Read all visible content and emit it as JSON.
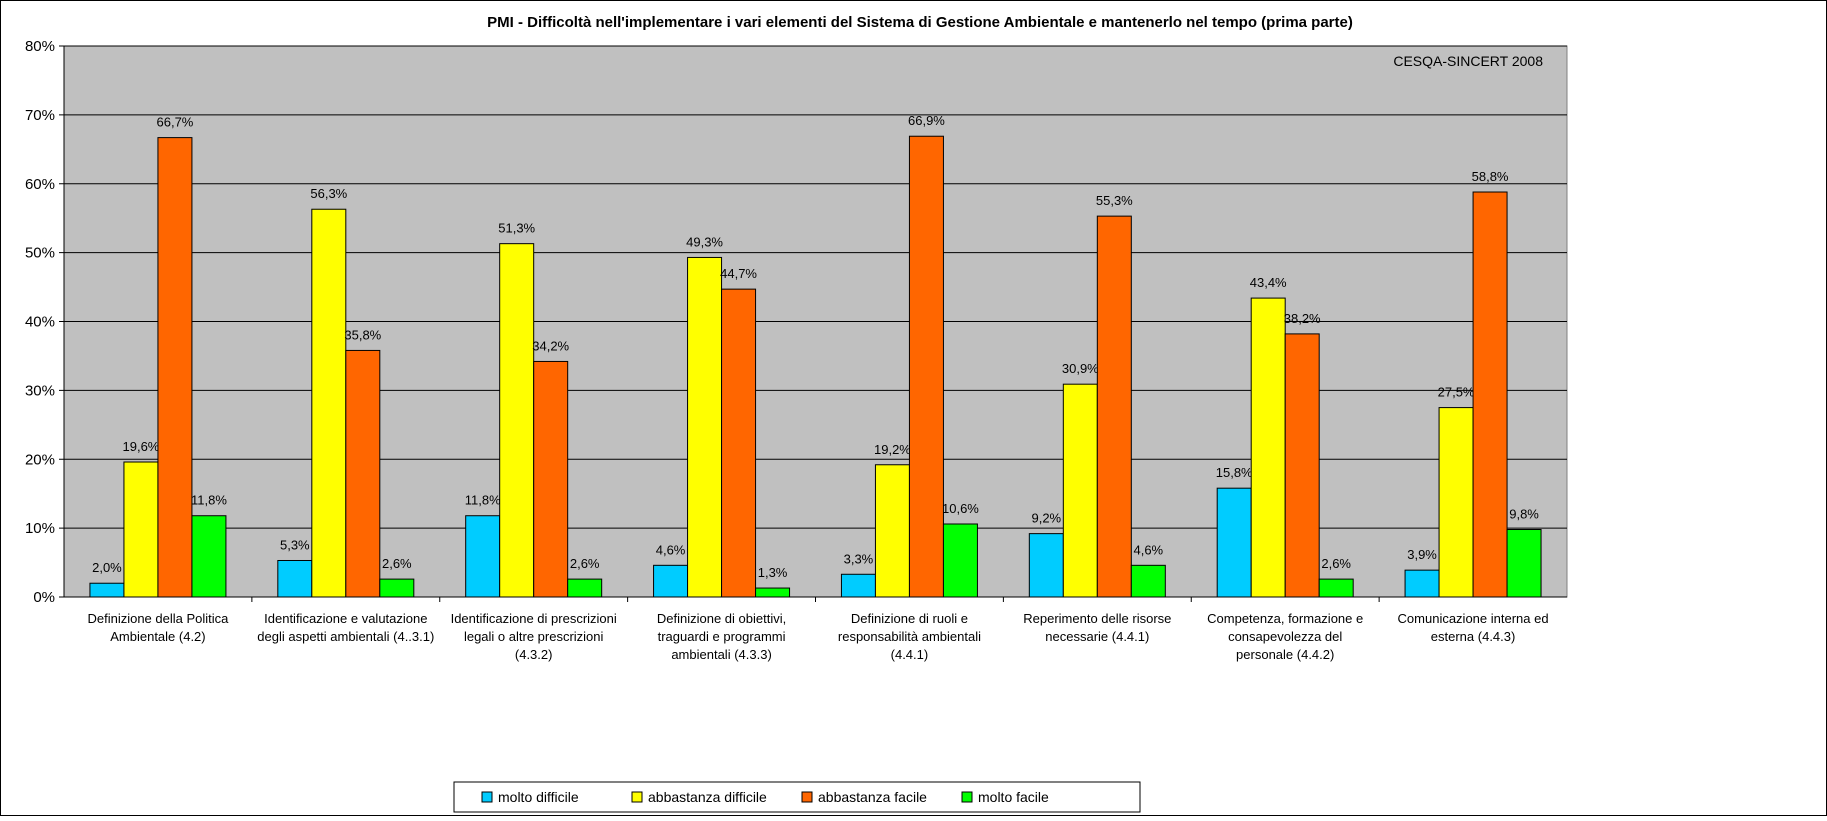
{
  "chart_data": {
    "type": "bar",
    "title": "PMI - Difficoltà nell'implementare i vari elementi del Sistema di Gestione Ambientale e mantenerlo nel tempo (prima parte)",
    "annotation": "CESQA-SINCERT 2008",
    "categories": [
      [
        "Definizione della Politica",
        "Ambientale (4.2)"
      ],
      [
        "Identificazione e valutazione",
        "degli aspetti ambientali (4..3.1)"
      ],
      [
        "Identificazione di prescrizioni",
        "legali o altre prescrizioni",
        "(4.3.2)"
      ],
      [
        "Definizione di obiettivi,",
        "traguardi e programmi",
        "ambientali (4.3.3)"
      ],
      [
        "Definizione di ruoli e",
        "responsabilità ambientali",
        "(4.4.1)"
      ],
      [
        "Reperimento delle risorse",
        "necessarie (4.4.1)"
      ],
      [
        "Competenza, formazione e",
        "consapevolezza del",
        "personale (4.4.2)"
      ],
      [
        "Comunicazione interna ed",
        "esterna (4.4.3)"
      ]
    ],
    "series": [
      {
        "name": "molto difficile",
        "color": "#00CCFF",
        "values": [
          2.0,
          5.3,
          11.8,
          4.6,
          3.3,
          9.2,
          15.8,
          3.9
        ],
        "labels": [
          "2,0%",
          "5,3%",
          "11,8%",
          "4,6%",
          "3,3%",
          "9,2%",
          "15,8%",
          "3,9%"
        ]
      },
      {
        "name": "abbastanza difficile",
        "color": "#FFFF00",
        "values": [
          19.6,
          56.3,
          51.3,
          49.3,
          19.2,
          30.9,
          43.4,
          27.5
        ],
        "labels": [
          "19,6%",
          "56,3%",
          "51,3%",
          "49,3%",
          "19,2%",
          "30,9%",
          "43,4%",
          "27,5%"
        ]
      },
      {
        "name": "abbastanza facile",
        "color": "#FF6600",
        "values": [
          66.7,
          35.8,
          34.2,
          44.7,
          66.9,
          55.3,
          38.2,
          58.8
        ],
        "labels": [
          "66,7%",
          "35,8%",
          "34,2%",
          "44,7%",
          "66,9%",
          "55,3%",
          "38,2%",
          "58,8%"
        ]
      },
      {
        "name": "molto facile",
        "color": "#00FF00",
        "values": [
          11.8,
          2.6,
          2.6,
          1.3,
          10.6,
          4.6,
          2.6,
          9.8
        ],
        "labels": [
          "11,8%",
          "2,6%",
          "2,6%",
          "1,3%",
          "10,6%",
          "4,6%",
          "2,6%",
          "9,8%"
        ]
      }
    ],
    "yticks": [
      "0%",
      "10%",
      "20%",
      "30%",
      "40%",
      "50%",
      "60%",
      "70%",
      "80%"
    ],
    "ylim": [
      0,
      80
    ],
    "grid": true,
    "plot_background": "#C0C0C0",
    "legend_position": "bottom"
  }
}
